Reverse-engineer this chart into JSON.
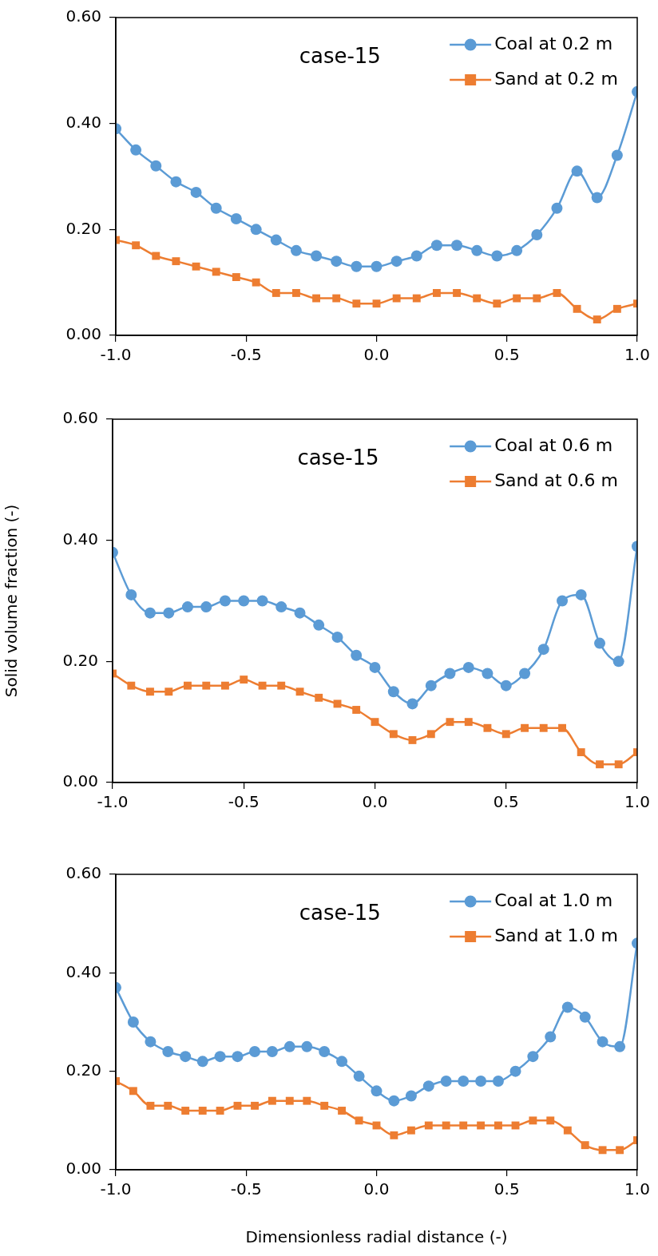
{
  "chart_data": [
    {
      "type": "line",
      "annotations": [
        "case-15"
      ],
      "legend": "top right",
      "grid": false,
      "xlim": [
        -1,
        1
      ],
      "xticks": [
        {
          "value": -1,
          "label": "-1.0"
        },
        {
          "value": -0.5,
          "label": "-0.5"
        },
        {
          "value": 0,
          "label": "0.0"
        },
        {
          "value": 0.5,
          "label": "0.5"
        },
        {
          "value": 1,
          "label": "1.0"
        }
      ],
      "ylim": [
        0,
        0.6
      ],
      "yticks": [
        {
          "value": 0,
          "label": "0.00"
        },
        {
          "value": 0.2,
          "label": "0.20"
        },
        {
          "value": 0.4,
          "label": "0.40"
        },
        {
          "value": 0.6,
          "label": "0.60"
        }
      ],
      "x": [
        -1,
        -0.923,
        -0.846,
        -0.769,
        -0.692,
        -0.615,
        -0.538,
        -0.462,
        -0.385,
        -0.308,
        -0.231,
        -0.154,
        -0.077,
        0,
        0.077,
        0.154,
        0.231,
        0.308,
        0.385,
        0.462,
        0.538,
        0.615,
        0.692,
        0.769,
        0.846,
        0.923,
        1
      ],
      "series": [
        {
          "name": "Coal at 0.2 m",
          "color": "#5b9bd5",
          "marker": "circle",
          "values": [
            0.39,
            0.35,
            0.32,
            0.29,
            0.27,
            0.24,
            0.22,
            0.2,
            0.18,
            0.16,
            0.15,
            0.14,
            0.13,
            0.13,
            0.14,
            0.15,
            0.17,
            0.17,
            0.16,
            0.15,
            0.16,
            0.19,
            0.24,
            0.31,
            0.26,
            0.34,
            0.46
          ]
        },
        {
          "name": "Sand at 0.2 m",
          "color": "#ed7d31",
          "marker": "square",
          "values": [
            0.18,
            0.17,
            0.15,
            0.14,
            0.13,
            0.12,
            0.11,
            0.1,
            0.08,
            0.08,
            0.07,
            0.07,
            0.06,
            0.06,
            0.07,
            0.07,
            0.08,
            0.08,
            0.07,
            0.06,
            0.07,
            0.07,
            0.08,
            0.05,
            0.03,
            0.05,
            0.06
          ]
        }
      ]
    },
    {
      "type": "line",
      "annotations": [
        "case-15"
      ],
      "legend": "top right",
      "grid": false,
      "ylabel": "Solid volume fraction (-)",
      "xlim": [
        -1,
        1
      ],
      "xticks": [
        {
          "value": -1,
          "label": "-1.0"
        },
        {
          "value": -0.5,
          "label": "-0.5"
        },
        {
          "value": 0,
          "label": "0.0"
        },
        {
          "value": 0.5,
          "label": "0.5"
        },
        {
          "value": 1,
          "label": "1.0"
        }
      ],
      "ylim": [
        0,
        0.6
      ],
      "yticks": [
        {
          "value": 0,
          "label": "0.00"
        },
        {
          "value": 0.2,
          "label": "0.20"
        },
        {
          "value": 0.4,
          "label": "0.40"
        },
        {
          "value": 0.6,
          "label": "0.60"
        }
      ],
      "x": [
        -1,
        -0.929,
        -0.857,
        -0.786,
        -0.714,
        -0.643,
        -0.571,
        -0.5,
        -0.429,
        -0.357,
        -0.286,
        -0.214,
        -0.143,
        -0.071,
        0,
        0.071,
        0.143,
        0.214,
        0.286,
        0.357,
        0.429,
        0.5,
        0.571,
        0.643,
        0.714,
        0.786,
        0.857,
        0.929,
        1
      ],
      "series": [
        {
          "name": "Coal at 0.6 m",
          "color": "#5b9bd5",
          "marker": "circle",
          "values": [
            0.38,
            0.31,
            0.28,
            0.28,
            0.29,
            0.29,
            0.3,
            0.3,
            0.3,
            0.29,
            0.28,
            0.26,
            0.24,
            0.21,
            0.19,
            0.15,
            0.13,
            0.16,
            0.18,
            0.19,
            0.18,
            0.16,
            0.18,
            0.22,
            0.3,
            0.31,
            0.23,
            0.2,
            0.39
          ]
        },
        {
          "name": "Sand at 0.6 m",
          "color": "#ed7d31",
          "marker": "square",
          "values": [
            0.18,
            0.16,
            0.15,
            0.15,
            0.16,
            0.16,
            0.16,
            0.17,
            0.16,
            0.16,
            0.15,
            0.14,
            0.13,
            0.12,
            0.1,
            0.08,
            0.07,
            0.08,
            0.1,
            0.1,
            0.09,
            0.08,
            0.09,
            0.09,
            0.09,
            0.05,
            0.03,
            0.03,
            0.05
          ]
        }
      ]
    },
    {
      "type": "line",
      "annotations": [
        "case-15"
      ],
      "legend": "top right",
      "grid": false,
      "xlabel": "Dimensionless radial distance (-)",
      "xlim": [
        -1,
        1
      ],
      "xticks": [
        {
          "value": -1,
          "label": "-1.0"
        },
        {
          "value": -0.5,
          "label": "-0.5"
        },
        {
          "value": 0,
          "label": "0.0"
        },
        {
          "value": 0.5,
          "label": "0.5"
        },
        {
          "value": 1,
          "label": "1.0"
        }
      ],
      "ylim": [
        0,
        0.6
      ],
      "yticks": [
        {
          "value": 0,
          "label": "0.00"
        },
        {
          "value": 0.2,
          "label": "0.20"
        },
        {
          "value": 0.4,
          "label": "0.40"
        },
        {
          "value": 0.6,
          "label": "0.60"
        }
      ],
      "x": [
        -1,
        -0.933,
        -0.867,
        -0.8,
        -0.733,
        -0.667,
        -0.6,
        -0.533,
        -0.467,
        -0.4,
        -0.333,
        -0.267,
        -0.2,
        -0.133,
        -0.067,
        0,
        0.067,
        0.133,
        0.2,
        0.267,
        0.333,
        0.4,
        0.467,
        0.533,
        0.6,
        0.667,
        0.733,
        0.8,
        0.867,
        0.933,
        1
      ],
      "series": [
        {
          "name": "Coal at 1.0 m",
          "color": "#5b9bd5",
          "marker": "circle",
          "values": [
            0.37,
            0.3,
            0.26,
            0.24,
            0.23,
            0.22,
            0.23,
            0.23,
            0.24,
            0.24,
            0.25,
            0.25,
            0.24,
            0.22,
            0.19,
            0.16,
            0.14,
            0.15,
            0.17,
            0.18,
            0.18,
            0.18,
            0.18,
            0.2,
            0.23,
            0.27,
            0.33,
            0.31,
            0.26,
            0.25,
            0.46
          ]
        },
        {
          "name": "Sand at 1.0 m",
          "color": "#ed7d31",
          "marker": "square",
          "values": [
            0.18,
            0.16,
            0.13,
            0.13,
            0.12,
            0.12,
            0.12,
            0.13,
            0.13,
            0.14,
            0.14,
            0.14,
            0.13,
            0.12,
            0.1,
            0.09,
            0.07,
            0.08,
            0.09,
            0.09,
            0.09,
            0.09,
            0.09,
            0.09,
            0.1,
            0.1,
            0.08,
            0.05,
            0.04,
            0.04,
            0.06
          ]
        }
      ]
    }
  ]
}
